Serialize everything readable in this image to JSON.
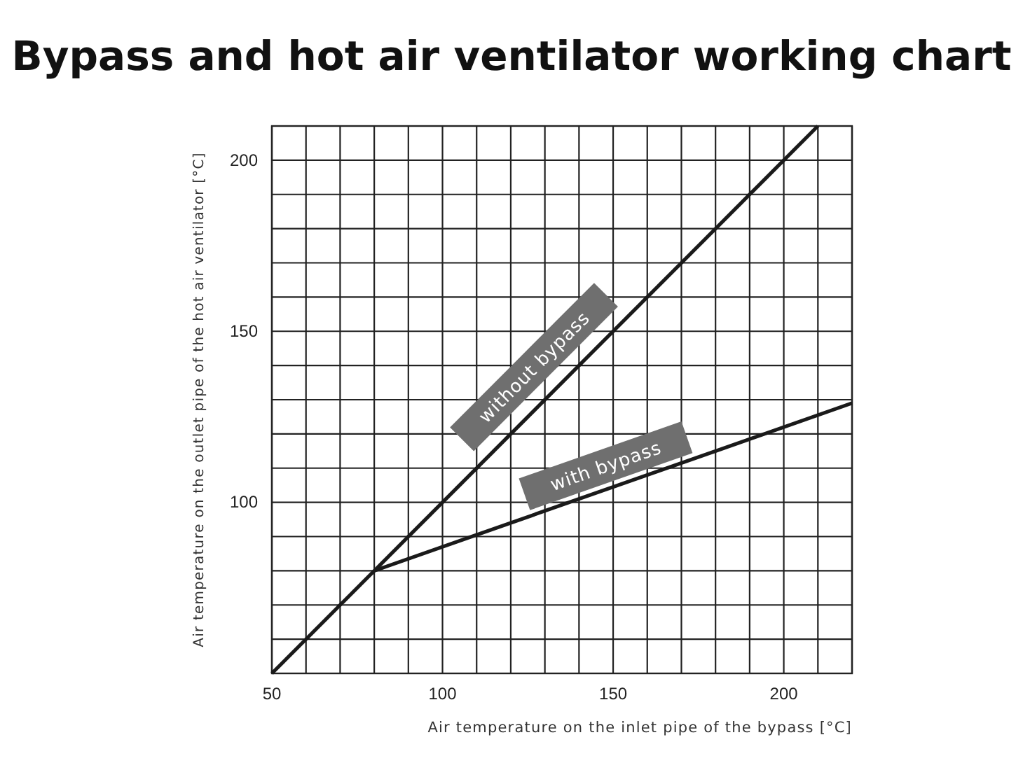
{
  "chart_data": {
    "type": "line",
    "title": "Bypass and hot air ventilator working chart",
    "xlabel": "Air temperature on the inlet pipe of the bypass [°C]",
    "ylabel": "Air temperature on the outlet pipe of the hot air ventilator [°C]",
    "xlim": [
      50,
      220
    ],
    "ylim": [
      50,
      210
    ],
    "xticks": [
      50,
      {
        "value": 60,
        "label": null
      },
      {
        "value": 70,
        "label": null
      },
      {
        "value": 80,
        "label": null
      },
      {
        "value": 90,
        "label": null
      },
      100,
      {
        "value": 110,
        "label": null
      },
      {
        "value": 120,
        "label": null
      },
      {
        "value": 130,
        "label": null
      },
      {
        "value": 140,
        "label": null
      },
      150,
      {
        "value": 160,
        "label": null
      },
      {
        "value": 170,
        "label": null
      },
      {
        "value": 180,
        "label": null
      },
      {
        "value": 190,
        "label": null
      },
      200,
      {
        "value": 210,
        "label": null
      },
      {
        "value": 220,
        "label": null
      }
    ],
    "yticks": [
      {
        "value": 50,
        "label": null
      },
      {
        "value": 60,
        "label": null
      },
      {
        "value": 70,
        "label": null
      },
      {
        "value": 80,
        "label": null
      },
      {
        "value": 90,
        "label": null
      },
      100,
      {
        "value": 110,
        "label": null
      },
      {
        "value": 120,
        "label": null
      },
      {
        "value": 130,
        "label": null
      },
      {
        "value": 140,
        "label": null
      },
      150,
      {
        "value": 160,
        "label": null
      },
      {
        "value": 170,
        "label": null
      },
      {
        "value": 180,
        "label": null
      },
      {
        "value": 190,
        "label": null
      },
      200,
      {
        "value": 210,
        "label": null
      }
    ],
    "grid": true,
    "marker": "none",
    "line_style": "solid",
    "series": [
      {
        "color": "#1a1a1a",
        "x": [
          50,
          210
        ],
        "values": [
          50,
          210
        ]
      },
      {
        "color": "#1a1a1a",
        "x": [
          80,
          220
        ],
        "values": [
          80,
          129
        ]
      }
    ],
    "annotations": [
      "without bypass",
      "with bypass"
    ]
  }
}
